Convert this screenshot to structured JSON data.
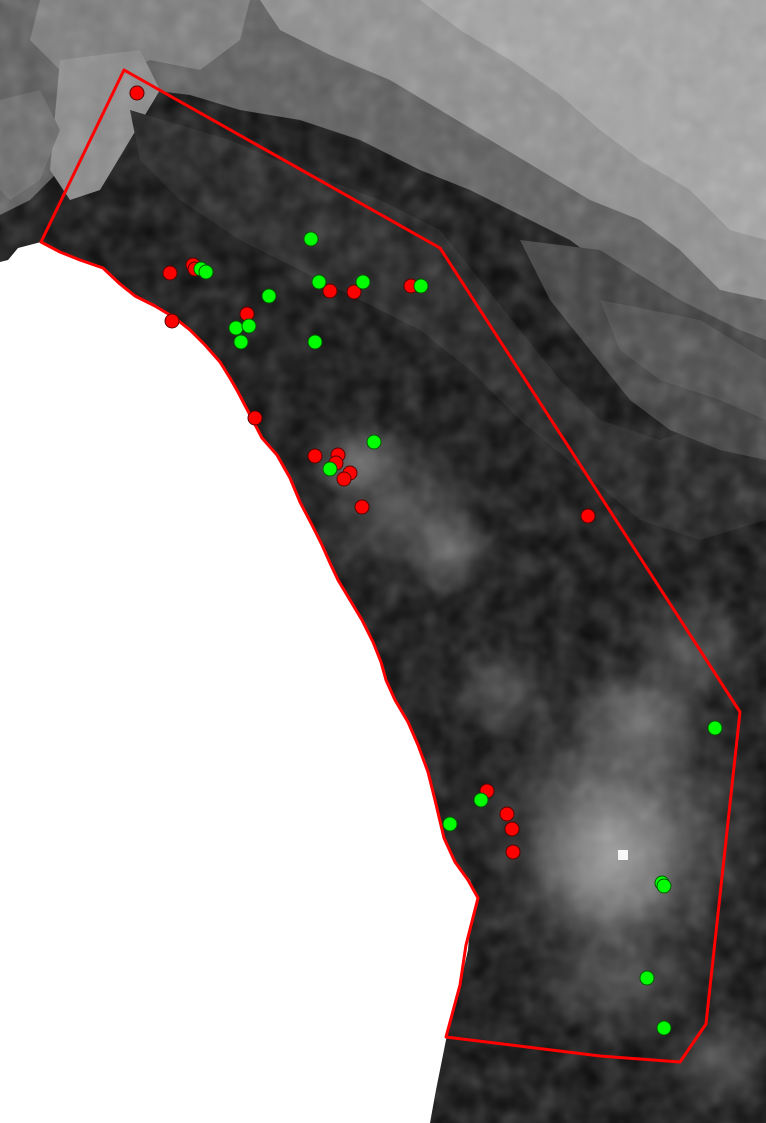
{
  "map": {
    "type": "elevation-raster-with-survey-sites",
    "raster_style": "grayscale",
    "ocean_color": "#ffffff",
    "study_area_color": "#ff0000",
    "legend": null
  },
  "site_categories": [
    {
      "key": "red",
      "color": "#ff0000"
    },
    {
      "key": "green",
      "color": "#00ff00"
    }
  ]
}
